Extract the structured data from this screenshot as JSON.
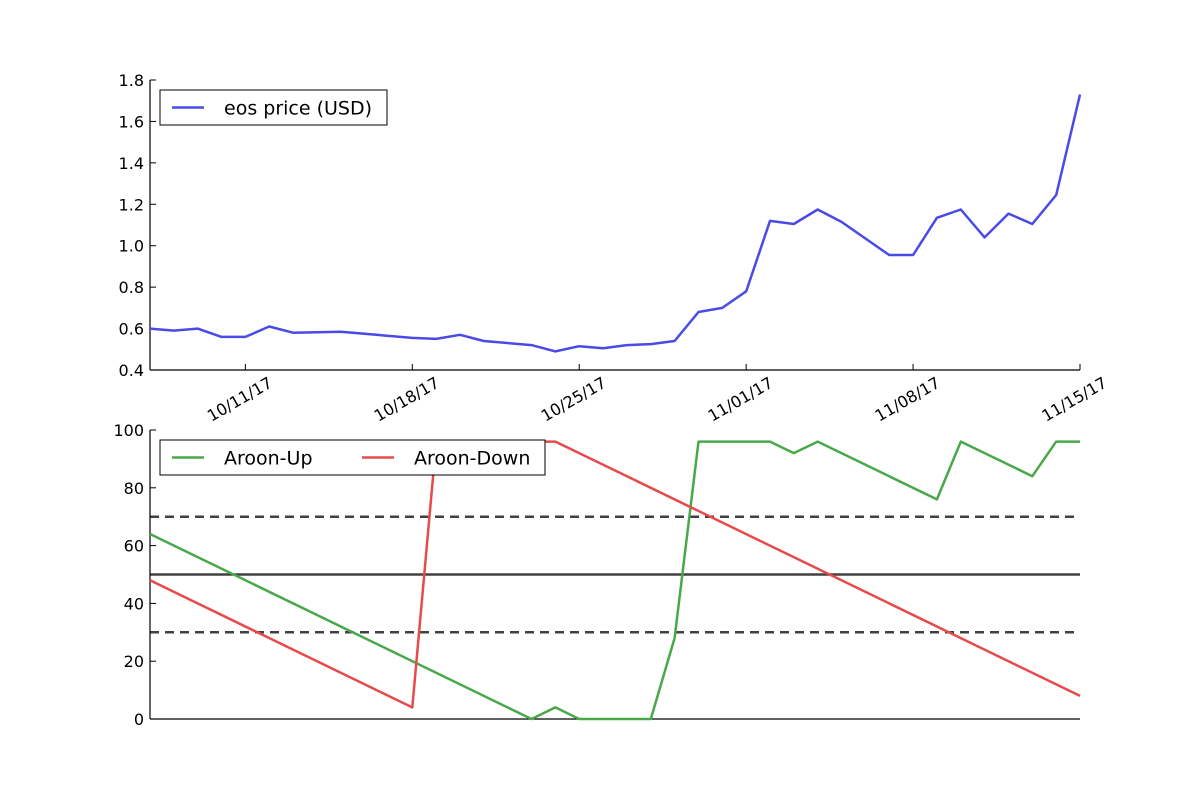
{
  "chart_data": [
    {
      "type": "line",
      "title": "",
      "xlabel": "",
      "ylabel": "",
      "x_domain": [
        "2017-10-07",
        "2017-11-15"
      ],
      "ylim": [
        0.4,
        1.8
      ],
      "y_ticks": [
        0.4,
        0.6,
        0.8,
        1.0,
        1.2,
        1.4,
        1.6,
        1.8
      ],
      "y_tick_labels": [
        "0.4",
        "0.6",
        "0.8",
        "1.0",
        "1.2",
        "1.4",
        "1.6",
        "1.8"
      ],
      "x_ticks": [
        "2017-10-11",
        "2017-10-18",
        "2017-10-25",
        "2017-11-01",
        "2017-11-08",
        "2017-11-15"
      ],
      "x_tick_labels": [
        "10/11/17",
        "10/18/17",
        "10/25/17",
        "11/01/17",
        "11/08/17",
        "11/15/17"
      ],
      "grid": false,
      "legend": {
        "placement": "upper-left",
        "entries": [
          "eos price (USD)"
        ]
      },
      "series": [
        {
          "name": "eos price (USD)",
          "color": "#4a4ae6",
          "points": [
            [
              "2017-10-07",
              0.6
            ],
            [
              "2017-10-08",
              0.59
            ],
            [
              "2017-10-09",
              0.6
            ],
            [
              "2017-10-10",
              0.56
            ],
            [
              "2017-10-11",
              0.56
            ],
            [
              "2017-10-12",
              0.61
            ],
            [
              "2017-10-13",
              0.58
            ],
            [
              "2017-10-15",
              0.585
            ],
            [
              "2017-10-16",
              0.575
            ],
            [
              "2017-10-18",
              0.555
            ],
            [
              "2017-10-19",
              0.55
            ],
            [
              "2017-10-20",
              0.57
            ],
            [
              "2017-10-21",
              0.54
            ],
            [
              "2017-10-23",
              0.52
            ],
            [
              "2017-10-24",
              0.49
            ],
            [
              "2017-10-25",
              0.515
            ],
            [
              "2017-10-26",
              0.505
            ],
            [
              "2017-10-27",
              0.52
            ],
            [
              "2017-10-28",
              0.525
            ],
            [
              "2017-10-29",
              0.54
            ],
            [
              "2017-10-30",
              0.68
            ],
            [
              "2017-10-31",
              0.7
            ],
            [
              "2017-11-01",
              0.78
            ],
            [
              "2017-11-02",
              1.12
            ],
            [
              "2017-11-03",
              1.105
            ],
            [
              "2017-11-04",
              1.175
            ],
            [
              "2017-11-05",
              1.115
            ],
            [
              "2017-11-07",
              0.955
            ],
            [
              "2017-11-08",
              0.955
            ],
            [
              "2017-11-09",
              1.135
            ],
            [
              "2017-11-10",
              1.175
            ],
            [
              "2017-11-11",
              1.04
            ],
            [
              "2017-11-12",
              1.155
            ],
            [
              "2017-11-13",
              1.105
            ],
            [
              "2017-11-14",
              1.245
            ],
            [
              "2017-11-15",
              1.73
            ]
          ]
        }
      ]
    },
    {
      "type": "line",
      "title": "",
      "xlabel": "",
      "ylabel": "",
      "x_domain": [
        "2017-10-07",
        "2017-11-15"
      ],
      "ylim": [
        0,
        100
      ],
      "y_ticks": [
        0,
        20,
        40,
        60,
        80,
        100
      ],
      "y_tick_labels": [
        "0",
        "20",
        "40",
        "60",
        "80",
        "100"
      ],
      "grid": false,
      "legend": {
        "placement": "upper-left",
        "entries": [
          "Aroon-Up",
          "Aroon-Down"
        ]
      },
      "reference_lines": [
        {
          "y": 70,
          "style": "dashed",
          "color": "#404040"
        },
        {
          "y": 50,
          "style": "solid",
          "color": "#404040"
        },
        {
          "y": 30,
          "style": "dashed",
          "color": "#404040"
        }
      ],
      "series": [
        {
          "name": "Aroon-Up",
          "color": "#4aa84a",
          "points": [
            [
              "2017-10-07",
              64
            ],
            [
              "2017-10-23",
              0
            ],
            [
              "2017-10-24",
              4
            ],
            [
              "2017-10-25",
              0
            ],
            [
              "2017-10-28",
              0
            ],
            [
              "2017-10-29",
              28
            ],
            [
              "2017-10-30",
              96
            ],
            [
              "2017-11-02",
              96
            ],
            [
              "2017-11-03",
              92
            ],
            [
              "2017-11-04",
              96
            ],
            [
              "2017-11-09",
              76
            ],
            [
              "2017-11-10",
              96
            ],
            [
              "2017-11-13",
              84
            ],
            [
              "2017-11-14",
              96
            ],
            [
              "2017-11-15",
              96
            ]
          ]
        },
        {
          "name": "Aroon-Down",
          "color": "#e64a4a",
          "points": [
            [
              "2017-10-07",
              48
            ],
            [
              "2017-10-18",
              4
            ],
            [
              "2017-10-19",
              96
            ],
            [
              "2017-10-24",
              96
            ],
            [
              "2017-11-15",
              8
            ]
          ]
        }
      ]
    }
  ]
}
